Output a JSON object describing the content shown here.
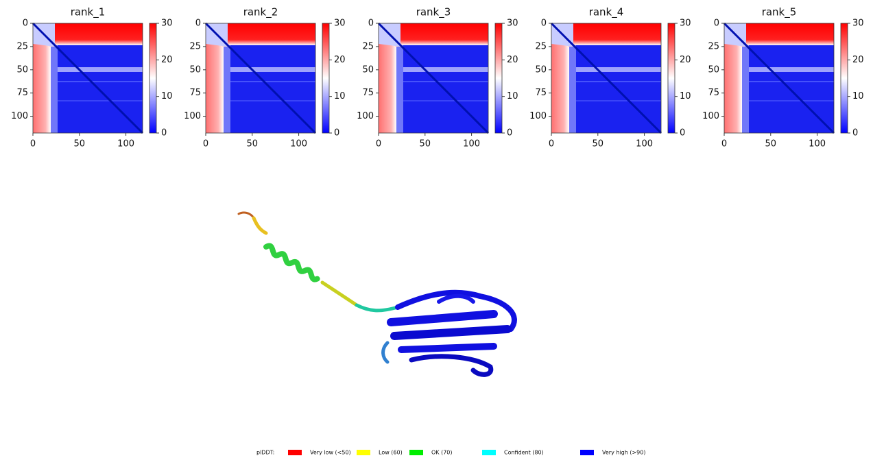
{
  "panels": [
    {
      "title": "rank_1",
      "xlim": [
        0,
        118
      ],
      "ylim": [
        0,
        118
      ],
      "xticks": [
        0,
        50,
        100
      ],
      "yticks": [
        0,
        25,
        50,
        75,
        100
      ],
      "clim": [
        0,
        30
      ],
      "cticks": [
        0,
        10,
        20,
        30
      ]
    },
    {
      "title": "rank_2",
      "xlim": [
        0,
        118
      ],
      "ylim": [
        0,
        118
      ],
      "xticks": [
        0,
        50,
        100
      ],
      "yticks": [
        0,
        25,
        50,
        75,
        100
      ],
      "clim": [
        0,
        30
      ],
      "cticks": [
        0,
        10,
        20,
        30
      ]
    },
    {
      "title": "rank_3",
      "xlim": [
        0,
        118
      ],
      "ylim": [
        0,
        118
      ],
      "xticks": [
        0,
        50,
        100
      ],
      "yticks": [
        0,
        25,
        50,
        75,
        100
      ],
      "clim": [
        0,
        30
      ],
      "cticks": [
        0,
        10,
        20,
        30
      ]
    },
    {
      "title": "rank_4",
      "xlim": [
        0,
        118
      ],
      "ylim": [
        0,
        118
      ],
      "xticks": [
        0,
        50,
        100
      ],
      "yticks": [
        0,
        25,
        50,
        75,
        100
      ],
      "clim": [
        0,
        30
      ],
      "cticks": [
        0,
        10,
        20,
        30
      ]
    },
    {
      "title": "rank_5",
      "xlim": [
        0,
        118
      ],
      "ylim": [
        0,
        118
      ],
      "xticks": [
        0,
        50,
        100
      ],
      "yticks": [
        0,
        25,
        50,
        75,
        100
      ],
      "clim": [
        0,
        30
      ],
      "cticks": [
        0,
        10,
        20,
        30
      ]
    }
  ],
  "legend": {
    "label": "plDDT:",
    "items": [
      {
        "text": "Very low (<50)",
        "color": "#ff0000"
      },
      {
        "text": "Low (60)",
        "color": "#ffff00"
      },
      {
        "text": "OK (70)",
        "color": "#00ee00"
      },
      {
        "text": "Confident (80)",
        "color": "#00ffff"
      },
      {
        "text": "Very high (>90)",
        "color": "#0000ff"
      }
    ]
  }
}
